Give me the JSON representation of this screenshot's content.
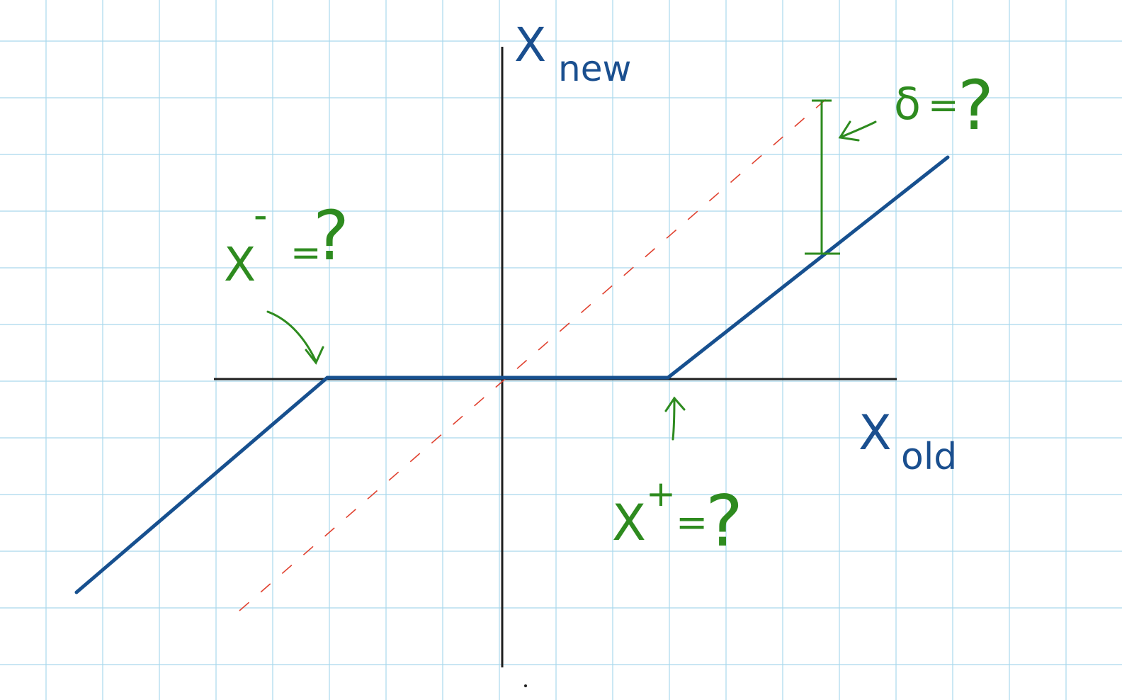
{
  "labels": {
    "x_new_main": "X",
    "x_new_sub": "new",
    "x_old_main": "X",
    "x_old_sub": "old",
    "x_minus_main": "X",
    "x_minus_sup": "-",
    "x_minus_eq": "=",
    "x_minus_value": "?",
    "x_plus_main": "X",
    "x_plus_sup": "+",
    "x_plus_eq": "=",
    "x_plus_value": "?",
    "delta_symbol": "δ",
    "delta_eq": "=",
    "delta_value": "?"
  },
  "colors": {
    "grid": "#a9d8ec",
    "axis": "#1e1e1e",
    "curve": "#17508f",
    "reference_dashed": "#e0412f",
    "annotation": "#2e8b1f",
    "label_blue": "#1a4f8f"
  }
}
